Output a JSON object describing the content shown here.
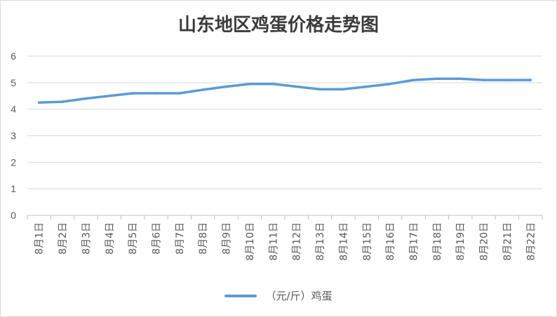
{
  "chart_data": {
    "type": "line",
    "title": "山东地区鸡蛋价格走势图",
    "xlabel": "",
    "ylabel": "",
    "categories": [
      "8月1日",
      "8月2日",
      "8月3日",
      "8月4日",
      "8月5日",
      "8月6日",
      "8月7日",
      "8月8日",
      "8月9日",
      "8月10日",
      "8月11日",
      "8月12日",
      "8月13日",
      "8月14日",
      "8月15日",
      "8月16日",
      "8月17日",
      "8月18日",
      "8月19日",
      "8月20日",
      "8月21日",
      "8月22日"
    ],
    "series": [
      {
        "name": "（元/斤）鸡蛋",
        "color": "#5b9bd5",
        "values": [
          4.25,
          4.28,
          4.4,
          4.5,
          4.6,
          4.6,
          4.6,
          4.73,
          4.85,
          4.95,
          4.95,
          4.85,
          4.75,
          4.75,
          4.85,
          4.95,
          5.1,
          5.15,
          5.15,
          5.1,
          5.1,
          5.1
        ]
      }
    ],
    "ylim": [
      0,
      6
    ],
    "yticks": [
      0,
      1,
      2,
      3,
      4,
      5,
      6
    ],
    "grid": true,
    "legend": "bottom"
  }
}
